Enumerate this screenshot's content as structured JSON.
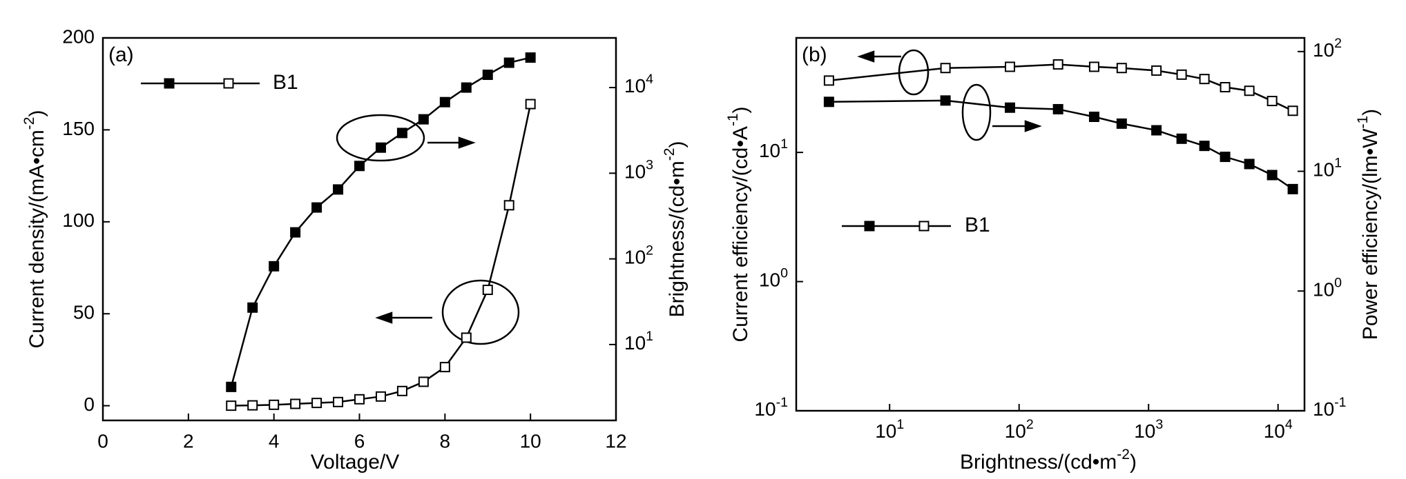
{
  "chart_data": [
    {
      "type": "line",
      "annotation": "(a)",
      "x_label": {
        "text": "Voltage/V"
      },
      "y_label": {
        "text": "Current density/(mA•cm",
        "sup": "-2",
        "end": ")"
      },
      "y2_label": {
        "text": "Brightness/(cd•m",
        "sup": "-2",
        "end": ")"
      },
      "xlim": [
        0,
        12
      ],
      "xticks": [
        0,
        2,
        4,
        6,
        8,
        10,
        12
      ],
      "ylim": [
        -8,
        200
      ],
      "yticks": [
        0,
        50,
        100,
        150,
        200
      ],
      "y2lim": [
        1.3,
        38000
      ],
      "y2log": true,
      "y2ticks": [
        {
          "value": 10,
          "label": "10",
          "sup": "1"
        },
        {
          "value": 100,
          "label": "10",
          "sup": "2"
        },
        {
          "value": 1000,
          "label": "10",
          "sup": "3"
        },
        {
          "value": 10000,
          "label": "10",
          "sup": "4"
        }
      ],
      "legend": {
        "label": "B1"
      },
      "x": [
        3,
        3.5,
        4,
        4.5,
        5,
        5.5,
        6,
        6.5,
        7,
        7.5,
        8,
        8.5,
        9,
        9.5,
        10
      ],
      "series": [
        {
          "color": "#000000",
          "marker": "filled",
          "axis": "y2",
          "values": [
            3.2,
            27,
            82,
            204,
            398,
            646,
            1216,
            1990,
            2950,
            4260,
            6760,
            10000,
            14100,
            19500,
            22400
          ]
        },
        {
          "color": "#000000",
          "marker": "open",
          "axis": "y",
          "values": [
            0,
            0.2,
            0.5,
            1,
            1.5,
            2,
            3.5,
            5,
            8,
            13,
            21,
            37,
            63,
            109,
            164
          ]
        }
      ]
    },
    {
      "type": "line",
      "annotation": "(b)",
      "x_label": {
        "text": "Brightness/(cd•m",
        "sup": "-2",
        "end": ")"
      },
      "y_label": {
        "text": "Current efficiency/(cd•A",
        "sup": "-1",
        "end": ")"
      },
      "y2_label": {
        "text": "Power efficiency/(lm•W",
        "sup": "-1",
        "end": ")"
      },
      "xlim": [
        1.9,
        16000
      ],
      "xlog": true,
      "xticks": [
        {
          "value": 10,
          "label": "10",
          "sup": "1"
        },
        {
          "value": 100,
          "label": "10",
          "sup": "2"
        },
        {
          "value": 1000,
          "label": "10",
          "sup": "3"
        },
        {
          "value": 10000,
          "label": "10",
          "sup": "4"
        }
      ],
      "ylim": [
        0.1,
        77
      ],
      "ylog": true,
      "yticks": [
        {
          "value": 0.1,
          "label": "10",
          "sup": "-1"
        },
        {
          "value": 1,
          "label": "10",
          "sup": "0"
        },
        {
          "value": 10,
          "label": "10",
          "sup": "1"
        }
      ],
      "y2lim": [
        0.1,
        130
      ],
      "y2log": true,
      "y2ticks": [
        {
          "value": 0.1,
          "label": "10",
          "sup": "-1"
        },
        {
          "value": 1,
          "label": "10",
          "sup": "0"
        },
        {
          "value": 10,
          "label": "10",
          "sup": "1"
        },
        {
          "value": 100,
          "label": "10",
          "sup": "2"
        }
      ],
      "legend": {
        "label": "B1"
      },
      "x": [
        3.4,
        27,
        85,
        200,
        380,
        620,
        1150,
        1800,
        2700,
        3900,
        6000,
        9000,
        13000
      ],
      "series": [
        {
          "color": "#000000",
          "marker": "filled",
          "axis": "y2",
          "values": [
            38,
            39,
            34,
            33,
            28.5,
            25,
            22,
            18.7,
            16.3,
            13.2,
            11.5,
            9.3,
            7.1
          ]
        },
        {
          "color": "#000000",
          "marker": "open",
          "axis": "y",
          "values": [
            36,
            45,
            46,
            48,
            46,
            45,
            43,
            40,
            37,
            32,
            30,
            25,
            21
          ]
        }
      ]
    }
  ]
}
